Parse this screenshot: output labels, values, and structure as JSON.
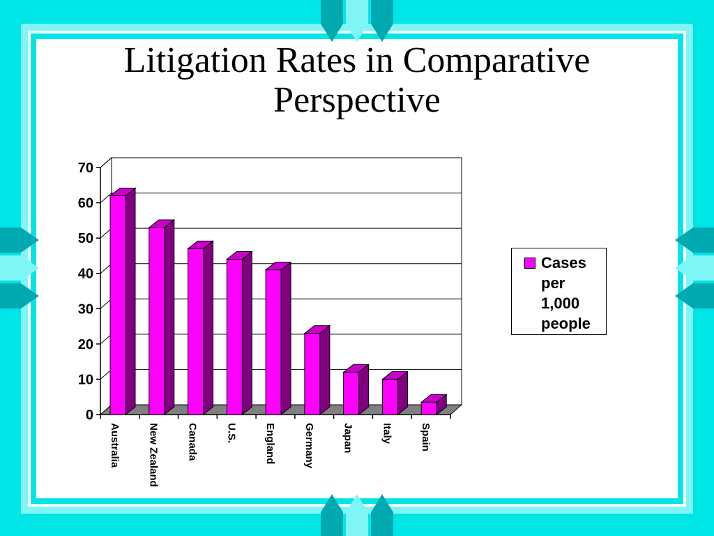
{
  "slide": {
    "title": "Litigation Rates in Comparative Perspective"
  },
  "colors": {
    "frame": "#00e5e5",
    "frame_light": "#7ff5f5",
    "frame_dark": "#00a8b0",
    "bar_front": "#ff00ff",
    "bar_top": "#cc00cc",
    "bar_side": "#800080",
    "floor": "#808080"
  },
  "chart_data": {
    "type": "bar",
    "categories": [
      "Australia",
      "New Zealand",
      "Canada",
      "U.S.",
      "England",
      "Germany",
      "Japan",
      "Italy",
      "Spain"
    ],
    "series": [
      {
        "name": "Cases per 1,000 people",
        "values": [
          62,
          53,
          47,
          44,
          41,
          23,
          12,
          10,
          3.5
        ]
      }
    ],
    "ylim": [
      0,
      70
    ],
    "yticks": [
      "0",
      "10",
      "20",
      "30",
      "40",
      "50",
      "60",
      "70"
    ],
    "grid": true,
    "legend_position": "right",
    "style": "3d"
  }
}
